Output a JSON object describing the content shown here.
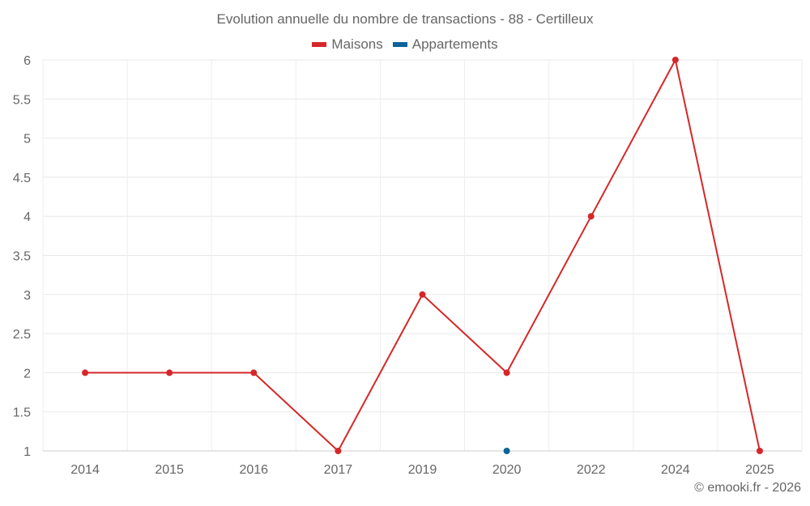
{
  "chart_data": {
    "type": "line",
    "title": "Evolution annuelle du nombre de transactions - 88 - Certilleux",
    "categories": [
      "2014",
      "2015",
      "2016",
      "2017",
      "2019",
      "2020",
      "2022",
      "2024",
      "2025"
    ],
    "series": [
      {
        "name": "Maisons",
        "color": "#d62728",
        "values": [
          2,
          2,
          2,
          1,
          3,
          2,
          4,
          6,
          1
        ]
      },
      {
        "name": "Appartements",
        "color": "#0b6399",
        "values": [
          null,
          null,
          null,
          null,
          null,
          1,
          null,
          null,
          null
        ]
      }
    ],
    "yticks": [
      "1",
      "1.5",
      "2",
      "2.5",
      "3",
      "3.5",
      "4",
      "4.5",
      "5",
      "5.5",
      "6"
    ],
    "ylim": [
      1,
      6
    ],
    "grid": true,
    "legend_position": "top-center",
    "xlabel": "",
    "ylabel": ""
  },
  "credit": "© emooki.fr - 2026"
}
